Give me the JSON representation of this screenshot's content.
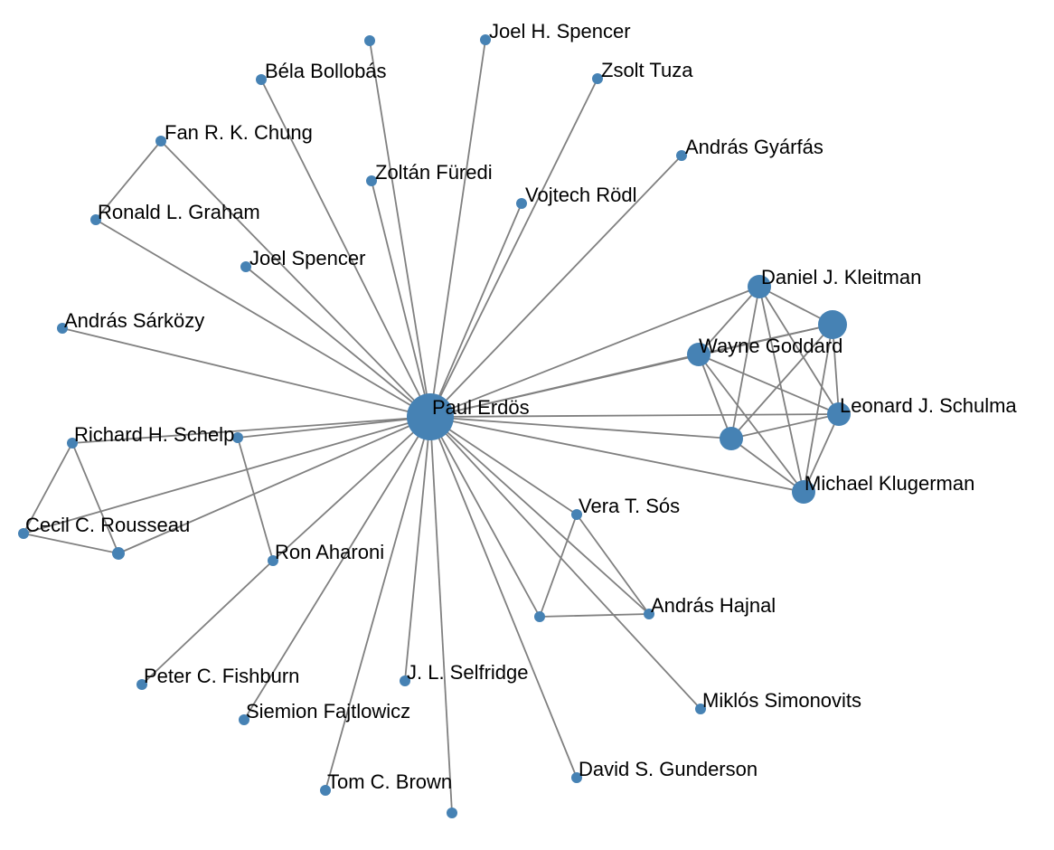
{
  "colors": {
    "node": "#4682b4",
    "edge": "#808080",
    "label": "#000000"
  },
  "nodes": [
    {
      "id": "paul_erdos",
      "label": "Paul Erdös",
      "icon": "node-circle"
    },
    {
      "id": "joel_h_spencer",
      "label": "Joel H. Spencer",
      "icon": "node-circle"
    },
    {
      "id": "bela_bollobas",
      "label": "Béla Bollobás",
      "icon": "node-circle"
    },
    {
      "id": "zsolt_tuza",
      "label": "Zsolt Tuza",
      "icon": "node-circle"
    },
    {
      "id": "unlabeled_top",
      "label": "",
      "icon": "node-circle"
    },
    {
      "id": "fan_chung",
      "label": "Fan R. K. Chung",
      "icon": "node-circle"
    },
    {
      "id": "andras_gyarfas",
      "label": "András Gyárfás",
      "icon": "node-circle"
    },
    {
      "id": "zoltan_furedi",
      "label": "Zoltán Füredi",
      "icon": "node-circle"
    },
    {
      "id": "vojtech_rodl",
      "label": "Vojtech Rödl",
      "icon": "node-circle"
    },
    {
      "id": "ronald_graham",
      "label": "Ronald L. Graham",
      "icon": "node-circle"
    },
    {
      "id": "joel_spencer",
      "label": "Joel Spencer",
      "icon": "node-circle"
    },
    {
      "id": "daniel_kleitman",
      "label": "Daniel J. Kleitman",
      "icon": "node-circle"
    },
    {
      "id": "andras_sarkozy",
      "label": "András Sárközy",
      "icon": "node-circle"
    },
    {
      "id": "unlabeled_right_top",
      "label": "",
      "icon": "node-circle"
    },
    {
      "id": "wayne_goddard",
      "label": "Wayne Goddard",
      "icon": "node-circle"
    },
    {
      "id": "leonard_schulman",
      "label": "Leonard J. Schulma",
      "icon": "node-circle"
    },
    {
      "id": "unlabeled_right_mid",
      "label": "",
      "icon": "node-circle"
    },
    {
      "id": "richard_schelp",
      "label": "Richard H. Schelp",
      "icon": "node-circle"
    },
    {
      "id": "unlabeled_schelp",
      "label": "",
      "icon": "node-circle"
    },
    {
      "id": "michael_klugerman",
      "label": "Michael Klugerman",
      "icon": "node-circle"
    },
    {
      "id": "vera_sos",
      "label": "Vera T. Sós",
      "icon": "node-circle"
    },
    {
      "id": "cecil_rousseau",
      "label": "Cecil C. Rousseau",
      "icon": "node-circle"
    },
    {
      "id": "unlabeled_left",
      "label": "",
      "icon": "node-circle"
    },
    {
      "id": "ron_aharoni",
      "label": "Ron Aharoni",
      "icon": "node-circle"
    },
    {
      "id": "andras_hajnal",
      "label": "András Hajnal",
      "icon": "node-circle"
    },
    {
      "id": "unlabeled_hajnal",
      "label": "",
      "icon": "node-circle"
    },
    {
      "id": "peter_fishburn",
      "label": "Peter C. Fishburn",
      "icon": "node-circle"
    },
    {
      "id": "jl_selfridge",
      "label": "J. L. Selfridge",
      "icon": "node-circle"
    },
    {
      "id": "siemion_fajtlowicz",
      "label": "Siemion Fajtlowicz",
      "icon": "node-circle"
    },
    {
      "id": "miklos_simonovits",
      "label": "Miklós Simonovits",
      "icon": "node-circle"
    },
    {
      "id": "david_gunderson",
      "label": "David S. Gunderson",
      "icon": "node-circle"
    },
    {
      "id": "tom_brown",
      "label": "Tom C. Brown",
      "icon": "node-circle"
    },
    {
      "id": "unlabeled_bottom",
      "label": "",
      "icon": "node-circle"
    }
  ],
  "edges": [
    [
      "paul_erdos",
      "joel_h_spencer"
    ],
    [
      "paul_erdos",
      "bela_bollobas"
    ],
    [
      "paul_erdos",
      "zsolt_tuza"
    ],
    [
      "paul_erdos",
      "unlabeled_top"
    ],
    [
      "paul_erdos",
      "fan_chung"
    ],
    [
      "paul_erdos",
      "andras_gyarfas"
    ],
    [
      "paul_erdos",
      "zoltan_furedi"
    ],
    [
      "paul_erdos",
      "vojtech_rodl"
    ],
    [
      "paul_erdos",
      "ronald_graham"
    ],
    [
      "paul_erdos",
      "joel_spencer"
    ],
    [
      "paul_erdos",
      "daniel_kleitman"
    ],
    [
      "paul_erdos",
      "andras_sarkozy"
    ],
    [
      "paul_erdos",
      "unlabeled_right_top"
    ],
    [
      "paul_erdos",
      "wayne_goddard"
    ],
    [
      "paul_erdos",
      "leonard_schulman"
    ],
    [
      "paul_erdos",
      "unlabeled_right_mid"
    ],
    [
      "paul_erdos",
      "richard_schelp"
    ],
    [
      "paul_erdos",
      "unlabeled_schelp"
    ],
    [
      "paul_erdos",
      "michael_klugerman"
    ],
    [
      "paul_erdos",
      "vera_sos"
    ],
    [
      "paul_erdos",
      "cecil_rousseau"
    ],
    [
      "paul_erdos",
      "unlabeled_left"
    ],
    [
      "paul_erdos",
      "ron_aharoni"
    ],
    [
      "paul_erdos",
      "andras_hajnal"
    ],
    [
      "paul_erdos",
      "unlabeled_hajnal"
    ],
    [
      "paul_erdos",
      "jl_selfridge"
    ],
    [
      "paul_erdos",
      "siemion_fajtlowicz"
    ],
    [
      "paul_erdos",
      "miklos_simonovits"
    ],
    [
      "paul_erdos",
      "david_gunderson"
    ],
    [
      "paul_erdos",
      "tom_brown"
    ],
    [
      "paul_erdos",
      "unlabeled_bottom"
    ],
    [
      "fan_chung",
      "ronald_graham"
    ],
    [
      "daniel_kleitman",
      "wayne_goddard"
    ],
    [
      "daniel_kleitman",
      "leonard_schulman"
    ],
    [
      "daniel_kleitman",
      "unlabeled_right_mid"
    ],
    [
      "daniel_kleitman",
      "michael_klugerman"
    ],
    [
      "daniel_kleitman",
      "unlabeled_right_top"
    ],
    [
      "unlabeled_right_top",
      "wayne_goddard"
    ],
    [
      "unlabeled_right_top",
      "leonard_schulman"
    ],
    [
      "unlabeled_right_top",
      "unlabeled_right_mid"
    ],
    [
      "unlabeled_right_top",
      "michael_klugerman"
    ],
    [
      "wayne_goddard",
      "leonard_schulman"
    ],
    [
      "wayne_goddard",
      "unlabeled_right_mid"
    ],
    [
      "wayne_goddard",
      "michael_klugerman"
    ],
    [
      "leonard_schulman",
      "unlabeled_right_mid"
    ],
    [
      "leonard_schulman",
      "michael_klugerman"
    ],
    [
      "unlabeled_right_mid",
      "michael_klugerman"
    ],
    [
      "richard_schelp",
      "cecil_rousseau"
    ],
    [
      "richard_schelp",
      "unlabeled_left"
    ],
    [
      "cecil_rousseau",
      "unlabeled_left"
    ],
    [
      "unlabeled_schelp",
      "ron_aharoni"
    ],
    [
      "ron_aharoni",
      "peter_fishburn"
    ],
    [
      "vera_sos",
      "andras_hajnal"
    ],
    [
      "vera_sos",
      "unlabeled_hajnal"
    ],
    [
      "andras_hajnal",
      "unlabeled_hajnal"
    ]
  ]
}
